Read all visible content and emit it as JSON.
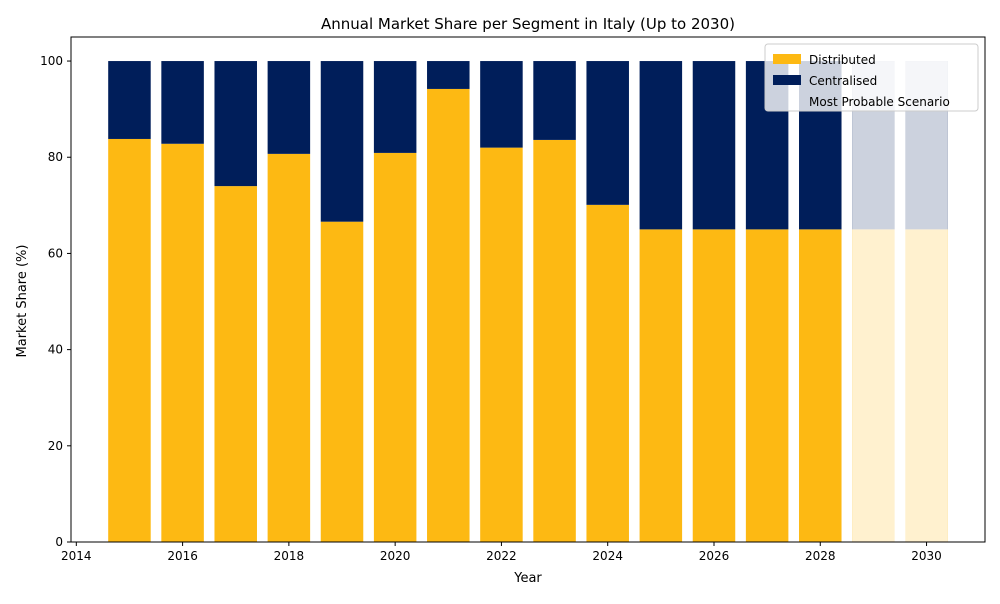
{
  "chart_data": {
    "type": "bar",
    "stacked": true,
    "title": "Annual Market Share per Segment in Italy (Up to 2030)",
    "xlabel": "Year",
    "ylabel": "Market Share (%)",
    "xlim": [
      2013.9,
      2031.1
    ],
    "ylim": [
      0,
      105
    ],
    "x_ticks": [
      2014,
      2016,
      2018,
      2020,
      2022,
      2024,
      2026,
      2028,
      2030
    ],
    "y_ticks": [
      0,
      20,
      40,
      60,
      80,
      100
    ],
    "grid": false,
    "legend_position": "top-right",
    "x": [
      2015,
      2016,
      2017,
      2018,
      2019,
      2020,
      2021,
      2022,
      2023,
      2024,
      2025,
      2026,
      2027,
      2028,
      2029,
      2030
    ],
    "series": [
      {
        "name": "Distributed",
        "color": "#FDB913",
        "values": [
          83.8,
          82.8,
          74.0,
          80.7,
          66.6,
          80.9,
          94.2,
          82.0,
          83.6,
          70.1,
          65.0,
          65.0,
          65.0,
          65.0,
          65.0,
          65.0
        ]
      },
      {
        "name": "Centralised",
        "color": "#001E5A",
        "values": [
          16.2,
          17.2,
          26.0,
          19.3,
          33.4,
          19.1,
          5.8,
          18.0,
          16.4,
          29.9,
          35.0,
          35.0,
          35.0,
          35.0,
          35.0,
          35.0
        ]
      }
    ],
    "scenario_band": {
      "name": "Most Probable Scenario",
      "color": "#ffffff",
      "opacity": 0.8,
      "x_from": 2029,
      "x_to": 2030,
      "y_from": 0,
      "y_to": 100
    }
  }
}
